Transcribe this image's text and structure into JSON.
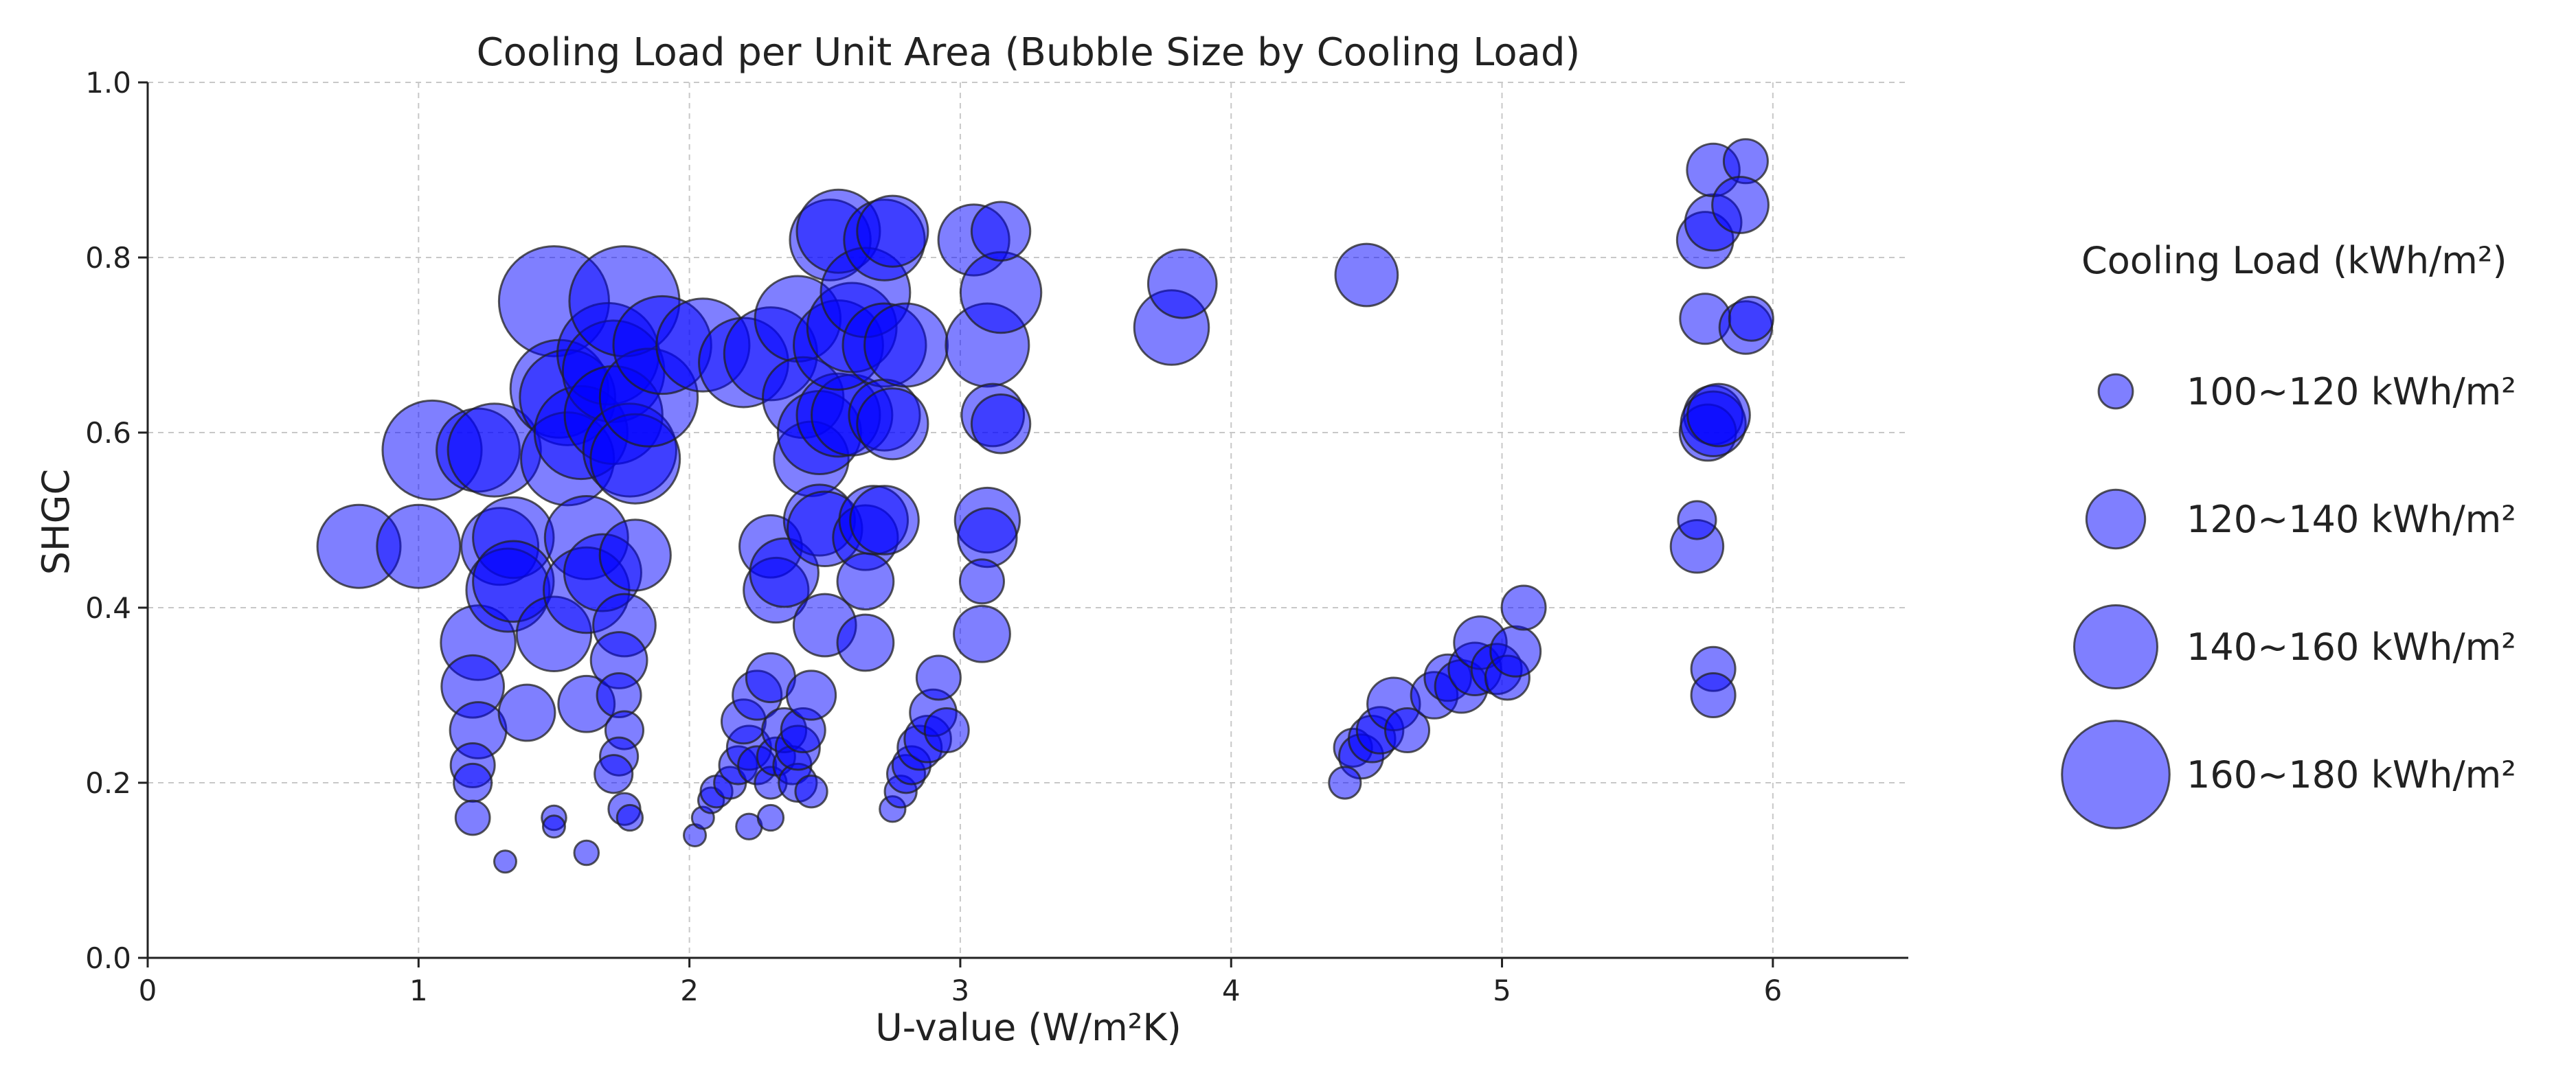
{
  "chart_data": {
    "type": "scatter",
    "title": "Cooling Load per Unit Area (Bubble Size by Cooling Load)",
    "xlabel": "U-value (W/m²K)",
    "ylabel": "SHGC",
    "xlim": [
      0,
      6.5
    ],
    "ylim": [
      0,
      1.0
    ],
    "xticks": [
      "0",
      "1",
      "2",
      "3",
      "4",
      "5",
      "6"
    ],
    "yticks": [
      "0.0",
      "0.2",
      "0.4",
      "0.6",
      "0.8",
      "1.0"
    ],
    "grid": true,
    "legend_position": "right",
    "bubble_color": "#0000ff",
    "bubble_edge_color": "#222222",
    "legend": {
      "title": "Cooling Load (kWh/m²)",
      "entries": [
        {
          "label": "100~120 kWh/m²",
          "load": 110
        },
        {
          "label": "120~140 kWh/m²",
          "load": 130
        },
        {
          "label": "140~160 kWh/m²",
          "load": 150
        },
        {
          "label": "160~180 kWh/m²",
          "load": 170
        }
      ]
    },
    "points": [
      [
        0.78,
        0.47,
        150
      ],
      [
        1.0,
        0.47,
        150
      ],
      [
        1.05,
        0.58,
        163
      ],
      [
        1.22,
        0.58,
        150
      ],
      [
        1.28,
        0.58,
        158
      ],
      [
        1.22,
        0.36,
        143
      ],
      [
        1.2,
        0.31,
        133
      ],
      [
        1.22,
        0.26,
        128
      ],
      [
        1.2,
        0.22,
        118
      ],
      [
        1.2,
        0.2,
        113
      ],
      [
        1.2,
        0.16,
        110
      ],
      [
        1.32,
        0.11,
        100
      ],
      [
        1.3,
        0.47,
        145
      ],
      [
        1.35,
        0.48,
        148
      ],
      [
        1.33,
        0.42,
        150
      ],
      [
        1.35,
        0.43,
        148
      ],
      [
        1.4,
        0.28,
        128
      ],
      [
        1.5,
        0.37,
        143
      ],
      [
        1.5,
        0.75,
        172
      ],
      [
        1.52,
        0.65,
        162
      ],
      [
        1.55,
        0.64,
        160
      ],
      [
        1.55,
        0.57,
        158
      ],
      [
        1.6,
        0.6,
        158
      ],
      [
        1.62,
        0.48,
        150
      ],
      [
        1.62,
        0.42,
        152
      ],
      [
        1.62,
        0.29,
        128
      ],
      [
        1.5,
        0.16,
        102
      ],
      [
        1.5,
        0.15,
        100
      ],
      [
        1.62,
        0.12,
        102
      ],
      [
        1.68,
        0.44,
        145
      ],
      [
        1.7,
        0.69,
        165
      ],
      [
        1.72,
        0.67,
        165
      ],
      [
        1.76,
        0.75,
        172
      ],
      [
        1.72,
        0.62,
        162
      ],
      [
        1.78,
        0.58,
        158
      ],
      [
        1.8,
        0.57,
        155
      ],
      [
        1.85,
        0.64,
        162
      ],
      [
        1.8,
        0.46,
        140
      ],
      [
        1.76,
        0.38,
        133
      ],
      [
        1.74,
        0.34,
        128
      ],
      [
        1.74,
        0.3,
        118
      ],
      [
        1.76,
        0.26,
        113
      ],
      [
        1.74,
        0.23,
        113
      ],
      [
        1.72,
        0.21,
        113
      ],
      [
        1.76,
        0.17,
        108
      ],
      [
        1.78,
        0.16,
        103
      ],
      [
        1.9,
        0.7,
        162
      ],
      [
        2.05,
        0.7,
        158
      ],
      [
        2.2,
        0.68,
        155
      ],
      [
        2.3,
        0.69,
        158
      ],
      [
        2.02,
        0.14,
        100
      ],
      [
        2.05,
        0.16,
        100
      ],
      [
        2.08,
        0.18,
        103
      ],
      [
        2.1,
        0.19,
        108
      ],
      [
        2.15,
        0.2,
        108
      ],
      [
        2.18,
        0.22,
        113
      ],
      [
        2.22,
        0.24,
        118
      ],
      [
        2.2,
        0.27,
        118
      ],
      [
        2.25,
        0.3,
        122
      ],
      [
        2.22,
        0.15,
        103
      ],
      [
        2.25,
        0.22,
        113
      ],
      [
        2.3,
        0.16,
        103
      ],
      [
        2.3,
        0.2,
        108
      ],
      [
        2.32,
        0.23,
        113
      ],
      [
        2.35,
        0.26,
        118
      ],
      [
        2.3,
        0.32,
        122
      ],
      [
        2.38,
        0.22,
        113
      ],
      [
        2.4,
        0.2,
        113
      ],
      [
        2.4,
        0.24,
        118
      ],
      [
        2.42,
        0.26,
        118
      ],
      [
        2.45,
        0.3,
        122
      ],
      [
        2.45,
        0.19,
        108
      ],
      [
        2.3,
        0.47,
        133
      ],
      [
        2.32,
        0.42,
        135
      ],
      [
        2.35,
        0.44,
        138
      ],
      [
        2.4,
        0.73,
        152
      ],
      [
        2.42,
        0.64,
        148
      ],
      [
        2.45,
        0.57,
        143
      ],
      [
        2.48,
        0.6,
        150
      ],
      [
        2.48,
        0.5,
        140
      ],
      [
        2.5,
        0.49,
        143
      ],
      [
        2.5,
        0.38,
        133
      ],
      [
        2.52,
        0.82,
        148
      ],
      [
        2.55,
        0.83,
        150
      ],
      [
        2.55,
        0.62,
        150
      ],
      [
        2.6,
        0.62,
        148
      ],
      [
        2.55,
        0.7,
        155
      ],
      [
        2.6,
        0.72,
        155
      ],
      [
        2.65,
        0.76,
        155
      ],
      [
        2.72,
        0.82,
        148
      ],
      [
        2.75,
        0.83,
        140
      ],
      [
        2.72,
        0.7,
        150
      ],
      [
        2.65,
        0.48,
        135
      ],
      [
        2.68,
        0.5,
        138
      ],
      [
        2.72,
        0.5,
        138
      ],
      [
        2.65,
        0.43,
        128
      ],
      [
        2.65,
        0.36,
        128
      ],
      [
        2.72,
        0.62,
        140
      ],
      [
        2.75,
        0.61,
        140
      ],
      [
        2.8,
        0.7,
        150
      ],
      [
        2.75,
        0.17,
        103
      ],
      [
        2.78,
        0.19,
        108
      ],
      [
        2.8,
        0.21,
        113
      ],
      [
        2.82,
        0.22,
        113
      ],
      [
        2.85,
        0.24,
        118
      ],
      [
        2.88,
        0.25,
        120
      ],
      [
        2.9,
        0.28,
        120
      ],
      [
        2.92,
        0.32,
        118
      ],
      [
        2.95,
        0.26,
        118
      ],
      [
        3.05,
        0.82,
        140
      ],
      [
        3.1,
        0.5,
        135
      ],
      [
        3.1,
        0.48,
        130
      ],
      [
        3.08,
        0.43,
        118
      ],
      [
        3.08,
        0.37,
        128
      ],
      [
        3.1,
        0.7,
        150
      ],
      [
        3.15,
        0.76,
        148
      ],
      [
        3.15,
        0.83,
        130
      ],
      [
        3.12,
        0.62,
        133
      ],
      [
        3.15,
        0.61,
        130
      ],
      [
        3.78,
        0.72,
        143
      ],
      [
        3.82,
        0.77,
        138
      ],
      [
        4.5,
        0.78,
        133
      ],
      [
        4.45,
        0.24,
        113
      ],
      [
        4.48,
        0.23,
        118
      ],
      [
        4.52,
        0.25,
        120
      ],
      [
        4.55,
        0.26,
        120
      ],
      [
        4.42,
        0.2,
        108
      ],
      [
        4.6,
        0.29,
        125
      ],
      [
        4.65,
        0.26,
        118
      ],
      [
        4.75,
        0.3,
        120
      ],
      [
        4.8,
        0.32,
        120
      ],
      [
        4.85,
        0.31,
        125
      ],
      [
        4.9,
        0.33,
        125
      ],
      [
        4.92,
        0.36,
        125
      ],
      [
        4.98,
        0.33,
        123
      ],
      [
        5.02,
        0.32,
        118
      ],
      [
        5.05,
        0.35,
        123
      ],
      [
        5.08,
        0.4,
        118
      ],
      [
        5.72,
        0.47,
        125
      ],
      [
        5.72,
        0.5,
        113
      ],
      [
        5.75,
        0.73,
        123
      ],
      [
        5.75,
        0.82,
        128
      ],
      [
        5.78,
        0.84,
        128
      ],
      [
        5.78,
        0.9,
        125
      ],
      [
        5.9,
        0.91,
        118
      ],
      [
        5.88,
        0.86,
        128
      ],
      [
        5.9,
        0.72,
        125
      ],
      [
        5.92,
        0.73,
        118
      ],
      [
        5.78,
        0.62,
        130
      ],
      [
        5.76,
        0.6,
        128
      ],
      [
        5.78,
        0.61,
        135
      ],
      [
        5.8,
        0.62,
        133
      ],
      [
        5.78,
        0.33,
        118
      ],
      [
        5.78,
        0.3,
        118
      ]
    ]
  }
}
